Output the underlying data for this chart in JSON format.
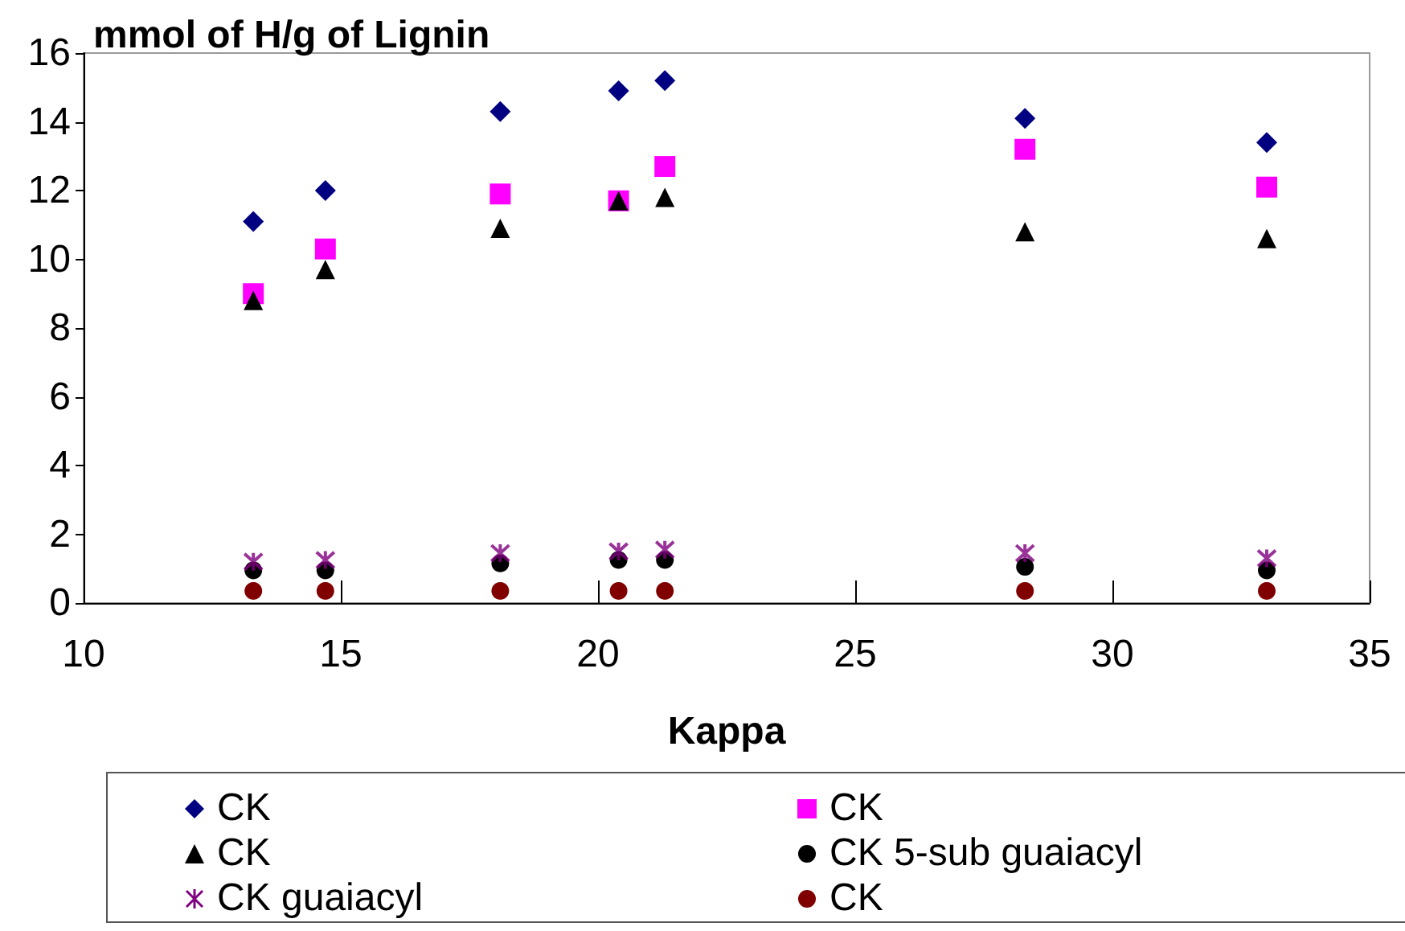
{
  "chart_data": {
    "type": "scatter",
    "ylabel": "mmol of H/g of Lignin",
    "xlabel": "Kappa",
    "x": [
      13.3,
      14.7,
      18.1,
      20.4,
      21.3,
      28.3,
      33.0
    ],
    "series": [
      {
        "name": "CK",
        "color": "#000080",
        "marker": "diamond",
        "values": [
          11.1,
          12.0,
          14.3,
          14.9,
          15.2,
          14.1,
          13.4
        ]
      },
      {
        "name": "CK",
        "color": "#ff00ff",
        "marker": "square",
        "values": [
          9.0,
          10.3,
          11.9,
          11.7,
          12.7,
          13.2,
          12.1
        ]
      },
      {
        "name": "CK",
        "color": "#000000",
        "marker": "triangle",
        "values": [
          8.8,
          9.7,
          10.9,
          11.7,
          11.8,
          10.8,
          10.6
        ]
      },
      {
        "name": "CK 5-sub guaiacyl",
        "color": "#000000",
        "marker": "circle",
        "values": [
          0.95,
          0.95,
          1.15,
          1.25,
          1.25,
          1.05,
          0.95
        ]
      },
      {
        "name": "CK guaiacyl",
        "color": "#800080",
        "marker": "cross",
        "values": [
          1.2,
          1.25,
          1.45,
          1.5,
          1.55,
          1.45,
          1.3
        ]
      },
      {
        "name": "CK",
        "color": "#800000",
        "marker": "circle",
        "values": [
          0.35,
          0.35,
          0.35,
          0.35,
          0.35,
          0.35,
          0.35
        ]
      }
    ],
    "xlim": [
      10,
      35
    ],
    "xticks": [
      10,
      15,
      20,
      25,
      30,
      35
    ],
    "ylim": [
      0,
      16
    ],
    "yticks": [
      0,
      2,
      4,
      6,
      8,
      10,
      12,
      14,
      16
    ],
    "grid": false,
    "legend": "bottom"
  }
}
